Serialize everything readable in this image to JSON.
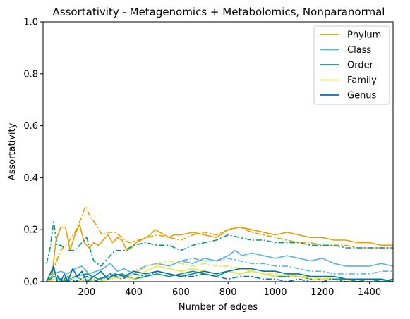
{
  "chart_data": {
    "type": "line",
    "title": "Assortativity - Metagenomics + Metabolomics, Nonparanormal",
    "xlabel": "Number of edges",
    "ylabel": "Assortativity",
    "xlim": [
      15,
      1500
    ],
    "ylim": [
      0,
      1.0
    ],
    "xticks": [
      200,
      400,
      600,
      800,
      1000,
      1200,
      1400
    ],
    "yticks": [
      0.0,
      0.2,
      0.4,
      0.6,
      0.8,
      1.0
    ],
    "ytick_labels": [
      "0.0",
      "0.2",
      "0.4",
      "0.6",
      "0.8",
      "1.0"
    ],
    "grid": false,
    "legend_position": "top-right",
    "legend": [
      "Phylum",
      "Class",
      "Order",
      "Family",
      "Genus"
    ],
    "series": [
      {
        "name": "Phylum",
        "style": "solid",
        "color": "#E69F00",
        "x": [
          30,
          50,
          70,
          90,
          110,
          130,
          150,
          170,
          190,
          210,
          230,
          250,
          270,
          290,
          310,
          330,
          350,
          370,
          390,
          410,
          430,
          450,
          470,
          490,
          510,
          530,
          550,
          570,
          600,
          650,
          700,
          750,
          800,
          850,
          900,
          950,
          1000,
          1050,
          1100,
          1150,
          1200,
          1250,
          1300,
          1350,
          1400,
          1450,
          1500
        ],
        "y": [
          0.0,
          0.0,
          0.16,
          0.21,
          0.21,
          0.12,
          0.18,
          0.22,
          0.15,
          0.13,
          0.15,
          0.14,
          0.16,
          0.18,
          0.15,
          0.17,
          0.16,
          0.12,
          0.13,
          0.15,
          0.16,
          0.17,
          0.18,
          0.2,
          0.19,
          0.18,
          0.17,
          0.18,
          0.18,
          0.19,
          0.18,
          0.17,
          0.2,
          0.21,
          0.2,
          0.19,
          0.18,
          0.19,
          0.18,
          0.17,
          0.17,
          0.16,
          0.16,
          0.15,
          0.15,
          0.14,
          0.14
        ]
      },
      {
        "name": "Phylum",
        "style": "dashdot",
        "color": "#E69F00",
        "x": [
          30,
          60,
          90,
          120,
          150,
          175,
          195,
          215,
          240,
          265,
          290,
          320,
          350,
          380,
          420,
          460,
          500,
          550,
          600,
          650,
          700,
          750,
          800,
          850,
          900,
          950,
          1000,
          1050,
          1100,
          1150,
          1200,
          1250,
          1300,
          1350,
          1400,
          1450,
          1500
        ],
        "y": [
          0.0,
          0.05,
          0.12,
          0.15,
          0.19,
          0.24,
          0.29,
          0.25,
          0.22,
          0.18,
          0.19,
          0.19,
          0.17,
          0.15,
          0.16,
          0.17,
          0.18,
          0.17,
          0.16,
          0.18,
          0.19,
          0.18,
          0.2,
          0.21,
          0.19,
          0.18,
          0.17,
          0.16,
          0.15,
          0.15,
          0.14,
          0.14,
          0.14,
          0.13,
          0.13,
          0.13,
          0.13
        ]
      },
      {
        "name": "Class",
        "style": "solid",
        "color": "#56B4E9",
        "x": [
          30,
          60,
          90,
          120,
          150,
          180,
          210,
          240,
          270,
          300,
          330,
          360,
          400,
          450,
          500,
          550,
          600,
          650,
          700,
          750,
          800,
          830,
          860,
          900,
          950,
          1000,
          1050,
          1100,
          1150,
          1200,
          1250,
          1300,
          1350,
          1400,
          1450,
          1500
        ],
        "y": [
          0.0,
          0.03,
          0.04,
          0.03,
          0.05,
          0.06,
          0.03,
          0.04,
          0.05,
          0.07,
          0.04,
          0.05,
          0.03,
          0.06,
          0.07,
          0.06,
          0.08,
          0.07,
          0.09,
          0.08,
          0.1,
          0.12,
          0.1,
          0.11,
          0.1,
          0.09,
          0.1,
          0.09,
          0.08,
          0.09,
          0.07,
          0.06,
          0.06,
          0.06,
          0.07,
          0.06
        ]
      },
      {
        "name": "Class",
        "style": "dashdot",
        "color": "#56B4E9",
        "x": [
          30,
          60,
          90,
          120,
          150,
          200,
          250,
          300,
          350,
          400,
          450,
          500,
          550,
          600,
          650,
          700,
          750,
          800,
          850,
          900,
          950,
          1000,
          1050,
          1100,
          1150,
          1200,
          1250,
          1300,
          1350,
          1400,
          1450,
          1500
        ],
        "y": [
          0.0,
          0.02,
          0.0,
          0.01,
          0.02,
          0.0,
          0.01,
          0.03,
          0.02,
          0.04,
          0.06,
          0.07,
          0.06,
          0.08,
          0.09,
          0.08,
          0.08,
          0.09,
          0.08,
          0.07,
          0.07,
          0.06,
          0.06,
          0.05,
          0.04,
          0.04,
          0.03,
          0.03,
          0.03,
          0.03,
          0.04,
          0.04
        ]
      },
      {
        "name": "Order",
        "style": "solid",
        "color": "#009E73",
        "x": [
          30,
          60,
          90,
          120,
          150,
          200,
          250,
          300,
          350,
          400,
          450,
          500,
          550,
          600,
          650,
          700,
          750,
          800,
          850,
          900,
          950,
          1000,
          1050,
          1100,
          1150,
          1200,
          1250,
          1300,
          1350,
          1400,
          1450,
          1500
        ],
        "y": [
          0.0,
          0.02,
          0.01,
          0.0,
          0.02,
          0.03,
          0.01,
          0.02,
          0.03,
          0.01,
          0.02,
          0.03,
          0.02,
          0.03,
          0.04,
          0.03,
          0.02,
          0.04,
          0.03,
          0.04,
          0.03,
          0.02,
          0.02,
          0.02,
          0.01,
          0.01,
          0.01,
          0.01,
          0.0,
          0.01,
          0.0,
          0.01
        ]
      },
      {
        "name": "Order",
        "style": "dashdot",
        "color": "#009E73",
        "x": [
          30,
          45,
          60,
          75,
          90,
          105,
          120,
          150,
          180,
          200,
          230,
          260,
          290,
          320,
          360,
          400,
          450,
          500,
          550,
          600,
          650,
          700,
          750,
          800,
          850,
          900,
          950,
          1000,
          1050,
          1100,
          1150,
          1200,
          1250,
          1300,
          1350,
          1400,
          1450,
          1500
        ],
        "y": [
          0.07,
          0.13,
          0.23,
          0.14,
          0.14,
          0.13,
          0.12,
          0.12,
          0.15,
          0.17,
          0.08,
          0.06,
          0.09,
          0.12,
          0.12,
          0.14,
          0.15,
          0.14,
          0.14,
          0.12,
          0.14,
          0.15,
          0.16,
          0.18,
          0.17,
          0.16,
          0.16,
          0.15,
          0.15,
          0.15,
          0.14,
          0.14,
          0.14,
          0.13,
          0.13,
          0.13,
          0.13,
          0.13
        ]
      },
      {
        "name": "Family",
        "style": "solid",
        "color": "#F0E442",
        "x": [
          30,
          60,
          90,
          120,
          150,
          200,
          250,
          300,
          350,
          400,
          450,
          500,
          550,
          600,
          650,
          700,
          750,
          800,
          850,
          900,
          950,
          1000,
          1050,
          1100,
          1150,
          1200,
          1250,
          1300,
          1350,
          1400,
          1450,
          1500
        ],
        "y": [
          0.0,
          0.01,
          0.0,
          0.02,
          0.0,
          0.01,
          0.0,
          0.01,
          0.02,
          0.01,
          0.04,
          0.06,
          0.05,
          0.04,
          0.05,
          0.04,
          0.03,
          0.04,
          0.03,
          0.04,
          0.03,
          0.02,
          0.03,
          0.02,
          0.02,
          0.01,
          0.02,
          0.01,
          0.01,
          0.01,
          0.01,
          0.0
        ]
      },
      {
        "name": "Family",
        "style": "dashdot",
        "color": "#F0E442",
        "x": [
          30,
          60,
          90,
          120,
          150,
          200,
          250,
          300,
          350,
          400,
          450,
          500,
          550,
          600,
          650,
          700,
          750,
          800,
          850,
          900,
          950,
          1000,
          1050,
          1100,
          1150,
          1200,
          1250,
          1300,
          1350,
          1400,
          1450,
          1500
        ],
        "y": [
          0.0,
          0.04,
          0.0,
          0.03,
          0.0,
          0.02,
          0.0,
          0.02,
          0.01,
          0.03,
          0.06,
          0.07,
          0.08,
          0.07,
          0.06,
          0.07,
          0.06,
          0.06,
          0.05,
          0.04,
          0.03,
          0.03,
          0.02,
          0.02,
          0.01,
          0.01,
          0.01,
          0.0,
          0.01,
          0.0,
          0.0,
          0.0
        ]
      },
      {
        "name": "Genus",
        "style": "solid",
        "color": "#0072B2",
        "x": [
          30,
          45,
          60,
          75,
          90,
          105,
          120,
          140,
          160,
          180,
          200,
          230,
          260,
          290,
          320,
          360,
          400,
          450,
          500,
          550,
          600,
          650,
          700,
          750,
          800,
          850,
          900,
          950,
          1000,
          1050,
          1100,
          1150,
          1200,
          1250,
          1300,
          1350,
          1400,
          1450,
          1500
        ],
        "y": [
          0.0,
          0.03,
          0.06,
          0.0,
          0.0,
          0.03,
          0.0,
          0.05,
          0.02,
          0.04,
          0.0,
          0.02,
          0.04,
          0.01,
          0.03,
          0.02,
          0.04,
          0.03,
          0.04,
          0.03,
          0.02,
          0.03,
          0.04,
          0.03,
          0.04,
          0.05,
          0.05,
          0.04,
          0.04,
          0.03,
          0.03,
          0.02,
          0.02,
          0.02,
          0.01,
          0.01,
          0.01,
          0.01,
          0.0
        ]
      },
      {
        "name": "Genus",
        "style": "dashdot",
        "color": "#0072B2",
        "x": [
          30,
          60,
          90,
          120,
          150,
          200,
          250,
          300,
          350,
          400,
          450,
          500,
          550,
          600,
          650,
          700,
          750,
          800,
          850,
          900,
          950,
          1000,
          1050,
          1100,
          1150,
          1200,
          1250,
          1300,
          1350,
          1400,
          1450,
          1500
        ],
        "y": [
          0.0,
          0.05,
          0.0,
          0.02,
          0.0,
          0.02,
          0.0,
          0.03,
          0.01,
          0.03,
          0.02,
          0.04,
          0.03,
          0.02,
          0.02,
          0.03,
          0.02,
          0.01,
          0.02,
          0.02,
          0.01,
          0.01,
          0.0,
          0.01,
          0.0,
          0.0,
          0.01,
          0.0,
          0.0,
          0.0,
          0.0,
          0.0
        ]
      }
    ]
  }
}
